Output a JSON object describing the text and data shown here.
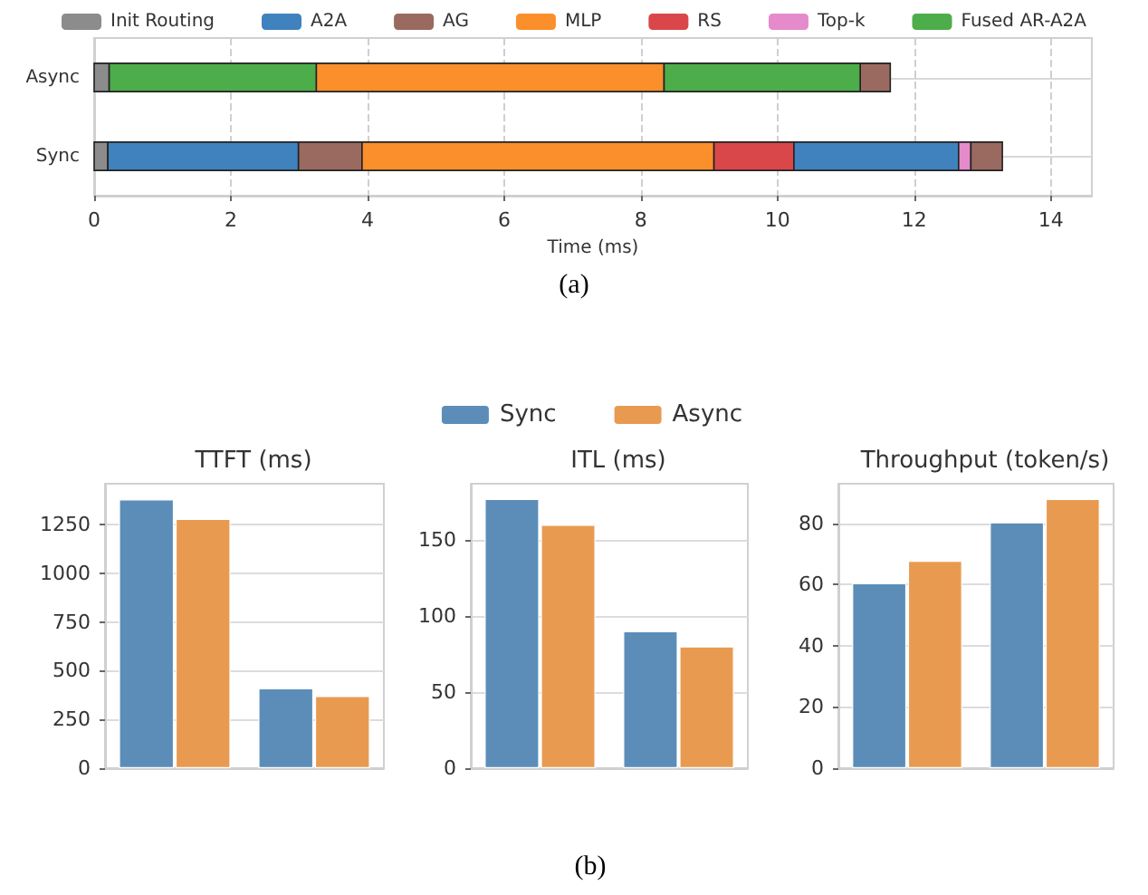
{
  "chart_data": [
    {
      "type": "bar",
      "orientation": "horizontal",
      "categories": [
        "Async",
        "Sync"
      ],
      "xlabel": "Time (ms)",
      "xlim": [
        0,
        14.6
      ],
      "xticks": [
        0,
        2,
        4,
        6,
        8,
        10,
        12,
        14
      ],
      "grid": true,
      "legend": "top",
      "annotations": [
        "(a)"
      ],
      "series": [
        {
          "name": "Init Routing",
          "color": "#8c8c8c",
          "base": [
            0,
            0
          ],
          "values": [
            0.22,
            0.2
          ]
        },
        {
          "name": "A2A",
          "color": "#3f82bd",
          "base": [
            null,
            0.2
          ],
          "values": [
            null,
            2.79
          ]
        },
        {
          "name": "AG",
          "color": "#9a6a60",
          "base": [
            null,
            2.99
          ],
          "values": [
            null,
            0.93
          ]
        },
        {
          "name": "MLP",
          "color": "#fb8f2b",
          "base": [
            3.25,
            3.92
          ],
          "values": [
            5.09,
            5.15
          ]
        },
        {
          "name": "RS",
          "color": "#d9474a",
          "base": [
            null,
            9.07
          ],
          "values": [
            null,
            1.17
          ]
        },
        {
          "color": "#3f82bd",
          "base": [
            null,
            10.24
          ],
          "values": [
            null,
            2.41
          ]
        },
        {
          "name": "Top-k",
          "color": "#e58bcc",
          "base": [
            null,
            12.65
          ],
          "values": [
            null,
            0.18
          ]
        },
        {
          "color": "#9a6a60",
          "base": [
            11.21,
            12.83
          ],
          "values": [
            0.44,
            0.46
          ]
        },
        {
          "name": "Fused AR-A2A",
          "color": "#4dad4b",
          "base": [
            0.22,
            null
          ],
          "values": [
            3.03,
            null
          ]
        },
        {
          "color": "#4dad4b",
          "base": [
            8.34,
            null
          ],
          "values": [
            2.87,
            null
          ]
        }
      ]
    },
    {
      "type": "bar",
      "title": "TTFT (ms)",
      "categories": [
        null,
        null
      ],
      "ylim": [
        0,
        1460
      ],
      "yticks": [
        0,
        250,
        500,
        750,
        1000,
        1250
      ],
      "grid": "y",
      "series": [
        {
          "color": "#5b8db8",
          "values": [
            1380,
            410
          ]
        },
        {
          "color": "#e99a51",
          "values": [
            1280,
            370
          ]
        }
      ]
    },
    {
      "type": "bar",
      "title": "ITL (ms)",
      "categories": [
        null,
        null
      ],
      "ylim": [
        0,
        187
      ],
      "yticks": [
        0,
        50,
        100,
        150
      ],
      "grid": "y",
      "legend": "top",
      "annotations": [
        "(b)"
      ],
      "series": [
        {
          "name": "Sync",
          "color": "#5b8db8",
          "values": [
            177,
            90
          ]
        },
        {
          "name": "Async",
          "color": "#e99a51",
          "values": [
            160,
            80
          ]
        }
      ]
    },
    {
      "type": "bar",
      "title": "Throughput (token/s)",
      "categories": [
        null,
        null
      ],
      "ylim": [
        0,
        93
      ],
      "yticks": [
        0,
        20,
        40,
        60,
        80
      ],
      "grid": "y",
      "series": [
        {
          "color": "#5b8db8",
          "values": [
            60.5,
            80.4
          ]
        },
        {
          "color": "#e99a51",
          "values": [
            67.8,
            88
          ]
        }
      ]
    }
  ]
}
